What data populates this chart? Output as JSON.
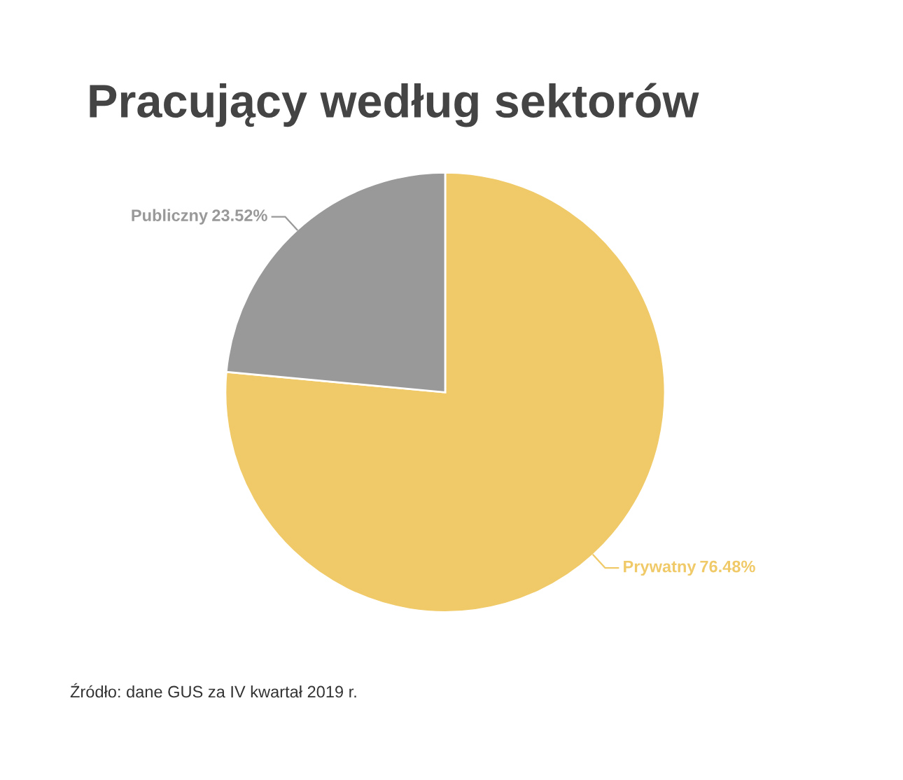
{
  "chart_data": {
    "type": "pie",
    "title": "Pracujący według sektorów",
    "categories": [
      "Prywatny",
      "Publiczny"
    ],
    "values": [
      76.48,
      23.52
    ],
    "colors": [
      "#f0ca68",
      "#999999"
    ],
    "value_labels": [
      "76.48%",
      "23.52%"
    ],
    "annotations": [
      "Źródło: dane GUS za IV kwartał 2019 r."
    ]
  }
}
